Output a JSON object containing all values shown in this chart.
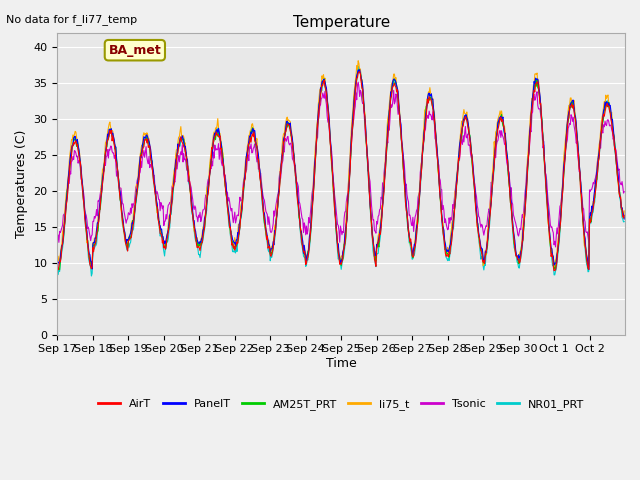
{
  "title": "Temperature",
  "subtitle": "No data for f_li77_temp",
  "ylabel": "Temperatures (C)",
  "xlabel": "Time",
  "legend_label": "BA_met",
  "ylim": [
    0,
    42
  ],
  "yticks": [
    0,
    5,
    10,
    15,
    20,
    25,
    30,
    35,
    40
  ],
  "series_colors": {
    "AirT": "#ff0000",
    "PanelT": "#0000ff",
    "AM25T_PRT": "#00cc00",
    "li75_t": "#ffaa00",
    "Tsonic": "#cc00cc",
    "NR01_PRT": "#00cccc"
  },
  "fig_facecolor": "#f0f0f0",
  "plot_bg_color": "#e8e8e8",
  "x_tick_labels": [
    "Sep 17",
    "Sep 18",
    "Sep 19",
    "Sep 20",
    "Sep 21",
    "Sep 22",
    "Sep 23",
    "Sep 24",
    "Sep 25",
    "Sep 26",
    "Sep 27",
    "Sep 28",
    "Sep 29",
    "Sep 30",
    "Oct 1",
    "Oct 2"
  ],
  "n_days": 16,
  "pts_per_day": 48,
  "day_maxes": [
    27,
    28,
    27,
    27,
    28,
    28,
    29,
    35,
    36.5,
    35,
    33,
    30,
    30,
    35,
    32,
    32
  ],
  "day_mins": [
    9,
    12,
    13,
    12,
    12,
    12,
    11,
    10,
    10,
    12,
    11,
    11,
    10,
    10,
    9,
    16
  ]
}
